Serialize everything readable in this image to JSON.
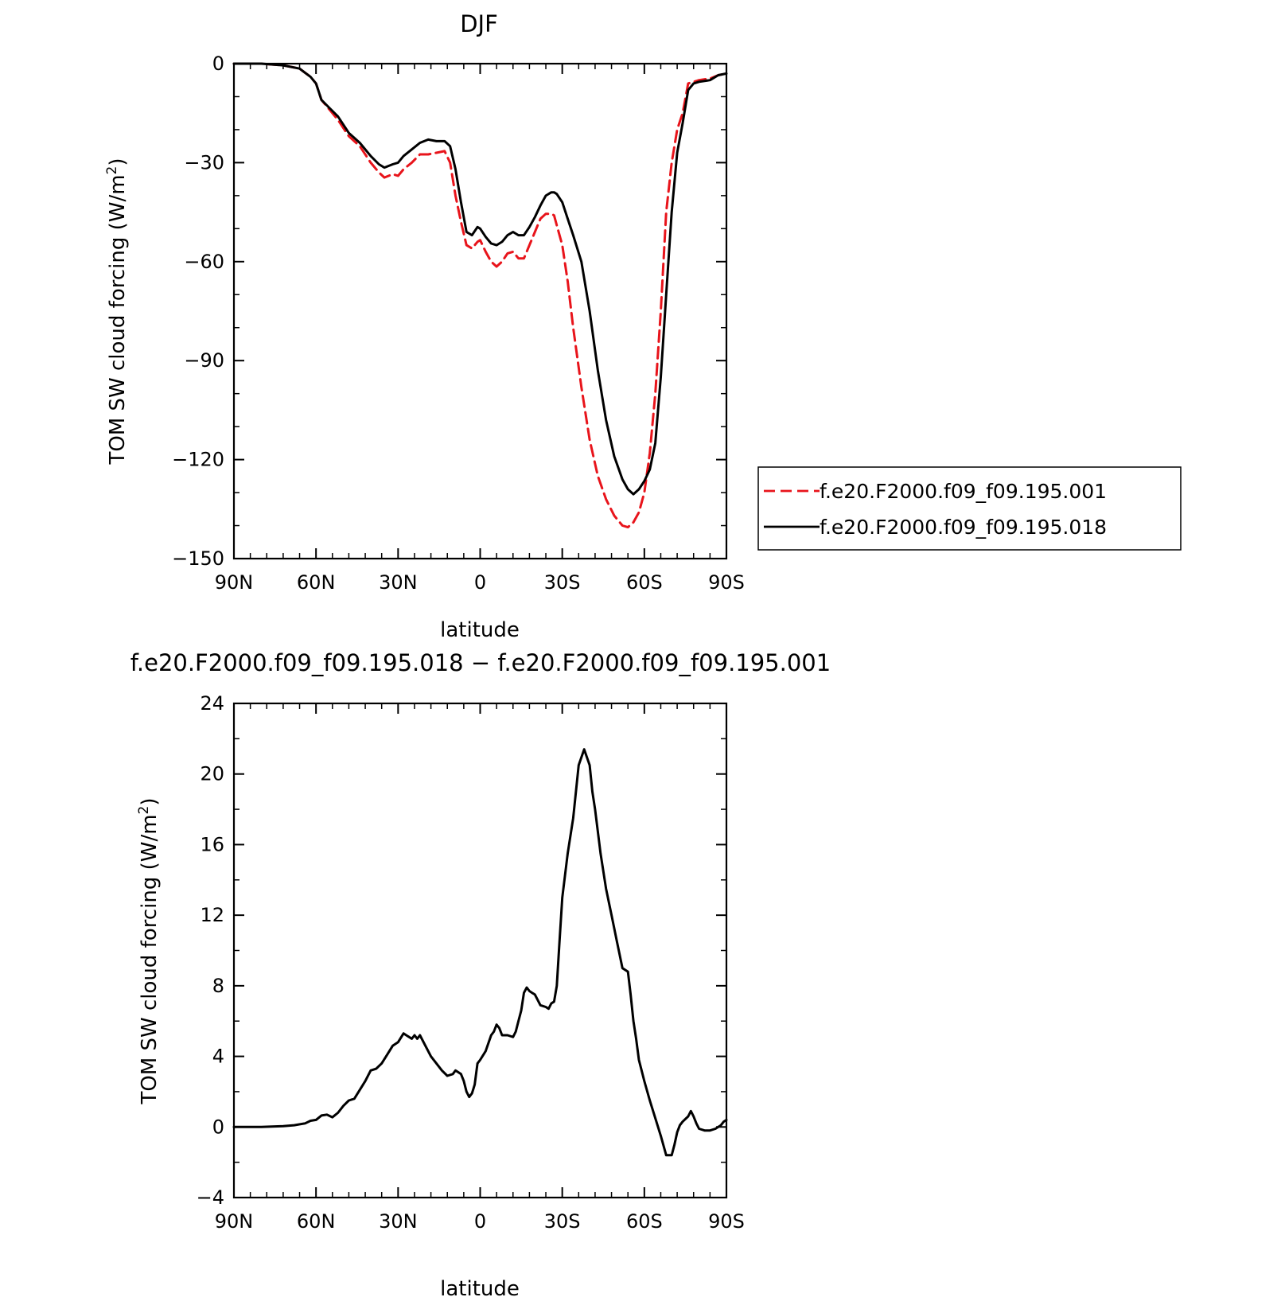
{
  "colors": {
    "run_001": "#e8141b",
    "run_018": "#000000",
    "axis": "#000000"
  },
  "chart_data": [
    {
      "type": "line",
      "title": "DJF",
      "xlabel": "latitude",
      "ylabel_main": "TOM SW cloud forcing (W/m",
      "ylabel_sup": "2",
      "ylabel_close": ")",
      "xlim": [
        90,
        -90
      ],
      "ylim": [
        -150,
        0
      ],
      "x_ticks": [
        {
          "value": 90,
          "label": "90N"
        },
        {
          "value": 60,
          "label": "60N"
        },
        {
          "value": 30,
          "label": "30N"
        },
        {
          "value": 0,
          "label": "0"
        },
        {
          "value": -30,
          "label": "30S"
        },
        {
          "value": -60,
          "label": "60S"
        },
        {
          "value": -90,
          "label": "90S"
        }
      ],
      "y_ticks": [
        {
          "value": 0,
          "label": "0"
        },
        {
          "value": -30,
          "label": "−30"
        },
        {
          "value": -60,
          "label": "−60"
        },
        {
          "value": -90,
          "label": "−90"
        },
        {
          "value": -120,
          "label": "−120"
        },
        {
          "value": -150,
          "label": "−150"
        }
      ],
      "legend_position": "right",
      "series": [
        {
          "name": "f.e20.F2000.f09_f09.195.001",
          "color": "#e8141b",
          "style": "dashed",
          "x": [
            90,
            80,
            72,
            66,
            62,
            60,
            58,
            55,
            52,
            48,
            44,
            40,
            37,
            35,
            32,
            30,
            28,
            25,
            22,
            19,
            16,
            13,
            11,
            9,
            7,
            5,
            3,
            1,
            0,
            -2,
            -4,
            -6,
            -8,
            -10,
            -12,
            -14,
            -16,
            -18,
            -20,
            -22,
            -24,
            -26,
            -27,
            -28,
            -30,
            -32,
            -34,
            -37,
            -40,
            -43,
            -46,
            -49,
            -52,
            -54,
            -56,
            -58,
            -60,
            -62,
            -64,
            -66,
            -68,
            -70,
            -72,
            -74,
            -76,
            -78,
            -80,
            -84,
            -87,
            -90
          ],
          "y": [
            0,
            0,
            -0.5,
            -1.5,
            -4,
            -6,
            -11,
            -14,
            -17,
            -22,
            -25,
            -30,
            -33,
            -34.5,
            -33.5,
            -34,
            -32,
            -30,
            -27.5,
            -27.5,
            -27,
            -26.5,
            -30,
            -40,
            -48,
            -55,
            -56,
            -54,
            -53.5,
            -57,
            -60,
            -61.5,
            -60,
            -57.5,
            -57,
            -59,
            -59,
            -55,
            -51,
            -47,
            -45.5,
            -45.5,
            -46,
            -49,
            -55,
            -66,
            -80,
            -98,
            -114,
            -125,
            -132,
            -137,
            -140,
            -140.5,
            -139,
            -136,
            -130,
            -118,
            -100,
            -75,
            -45,
            -30,
            -20,
            -15,
            -6,
            -5.5,
            -5,
            -4.5,
            -3.5,
            -3
          ]
        },
        {
          "name": "f.e20.F2000.f09_f09.195.018",
          "color": "#000000",
          "style": "solid",
          "x": [
            90,
            80,
            72,
            66,
            62,
            60,
            58,
            55,
            52,
            48,
            44,
            40,
            37,
            35,
            32,
            30,
            28,
            25,
            22,
            19,
            16,
            13,
            11,
            9,
            7,
            5,
            3,
            1,
            0,
            -2,
            -4,
            -6,
            -8,
            -10,
            -12,
            -14,
            -16,
            -18,
            -20,
            -22,
            -24,
            -26,
            -27,
            -28,
            -30,
            -32,
            -34,
            -37,
            -40,
            -43,
            -46,
            -49,
            -52,
            -54,
            -56,
            -58,
            -60,
            -62,
            -64,
            -66,
            -68,
            -70,
            -72,
            -74,
            -76,
            -78,
            -80,
            -84,
            -87,
            -90
          ],
          "y": [
            0,
            0,
            -0.5,
            -1.5,
            -4,
            -6,
            -11,
            -13.5,
            -16,
            -21,
            -24,
            -28,
            -30.5,
            -31.5,
            -30.5,
            -30,
            -28,
            -26,
            -24,
            -23,
            -23.5,
            -23.5,
            -25,
            -32,
            -42,
            -51,
            -52,
            -49.5,
            -50,
            -52.5,
            -54.5,
            -55,
            -54,
            -52,
            -51,
            -52,
            -52,
            -49.5,
            -46.5,
            -43,
            -40,
            -39,
            -39,
            -39.5,
            -42,
            -47,
            -52,
            -60,
            -75,
            -93,
            -108,
            -119,
            -126,
            -129,
            -130.5,
            -129,
            -126.5,
            -123,
            -115,
            -95,
            -70,
            -45,
            -27,
            -18,
            -8,
            -6,
            -5.5,
            -5,
            -3.5,
            -3
          ]
        }
      ]
    },
    {
      "type": "line",
      "title": "f.e20.F2000.f09_f09.195.018 − f.e20.F2000.f09_f09.195.001",
      "xlabel": "latitude",
      "ylabel_main": "TOM SW cloud forcing (W/m",
      "ylabel_sup": "2",
      "ylabel_close": ")",
      "xlim": [
        90,
        -90
      ],
      "ylim": [
        -4,
        24
      ],
      "x_ticks": [
        {
          "value": 90,
          "label": "90N"
        },
        {
          "value": 60,
          "label": "60N"
        },
        {
          "value": 30,
          "label": "30N"
        },
        {
          "value": 0,
          "label": "0"
        },
        {
          "value": -30,
          "label": "30S"
        },
        {
          "value": -60,
          "label": "60S"
        },
        {
          "value": -90,
          "label": "90S"
        }
      ],
      "y_ticks": [
        {
          "value": 24,
          "label": "24"
        },
        {
          "value": 20,
          "label": "20"
        },
        {
          "value": 16,
          "label": "16"
        },
        {
          "value": 12,
          "label": "12"
        },
        {
          "value": 8,
          "label": "8"
        },
        {
          "value": 4,
          "label": "4"
        },
        {
          "value": 0,
          "label": "0"
        },
        {
          "value": -4,
          "label": "−4"
        }
      ],
      "series": [
        {
          "name": "",
          "color": "#000000",
          "style": "solid",
          "x": [
            90,
            80,
            72,
            68,
            64,
            62,
            60,
            58,
            56,
            54,
            52,
            50,
            48,
            46,
            44,
            42,
            40,
            38,
            36,
            34,
            32,
            30,
            28,
            27,
            26,
            25,
            24,
            23,
            22,
            20,
            18,
            16,
            14,
            12,
            10,
            9,
            8,
            7,
            6,
            5,
            4,
            3,
            2,
            1,
            0,
            -2,
            -4,
            -5,
            -6,
            -7,
            -8,
            -10,
            -12,
            -13,
            -14,
            -15,
            -16,
            -17,
            -18,
            -19,
            -20,
            -22,
            -24,
            -25,
            -26,
            -27,
            -28,
            -29,
            -30,
            -32,
            -34,
            -36,
            -38,
            -40,
            -41,
            -42,
            -44,
            -46,
            -48,
            -50,
            -52,
            -54,
            -55,
            -56,
            -57,
            -58,
            -60,
            -62,
            -64,
            -66,
            -68,
            -70,
            -71,
            -72,
            -73,
            -74,
            -76,
            -77,
            -78,
            -79,
            -80,
            -82,
            -84,
            -86,
            -88,
            -89,
            -90
          ],
          "y": [
            0,
            0,
            0.05,
            0.1,
            0.2,
            0.35,
            0.4,
            0.65,
            0.7,
            0.55,
            0.8,
            1.2,
            1.5,
            1.6,
            2.1,
            2.6,
            3.2,
            3.3,
            3.6,
            4.1,
            4.6,
            4.8,
            5.3,
            5.2,
            5.1,
            5.0,
            5.2,
            5.0,
            5.2,
            4.6,
            4.0,
            3.6,
            3.2,
            2.9,
            3.0,
            3.2,
            3.1,
            3.0,
            2.6,
            2.0,
            1.7,
            1.9,
            2.4,
            3.6,
            3.8,
            4.3,
            5.2,
            5.4,
            5.8,
            5.6,
            5.2,
            5.2,
            5.1,
            5.4,
            6.0,
            6.6,
            7.6,
            7.9,
            7.7,
            7.6,
            7.5,
            6.9,
            6.8,
            6.7,
            7.0,
            7.1,
            8.0,
            10.5,
            13.0,
            15.5,
            17.5,
            20.5,
            21.4,
            20.5,
            19.0,
            18.0,
            15.5,
            13.5,
            12.0,
            10.5,
            9.0,
            8.8,
            7.5,
            6.0,
            5.0,
            3.8,
            2.6,
            1.5,
            0.5,
            -0.5,
            -1.6,
            -1.6,
            -1.0,
            -0.3,
            0.1,
            0.3,
            0.6,
            0.9,
            0.6,
            0.2,
            -0.1,
            -0.2,
            -0.2,
            -0.1,
            0.1,
            0.3,
            0.4
          ]
        }
      ]
    }
  ]
}
